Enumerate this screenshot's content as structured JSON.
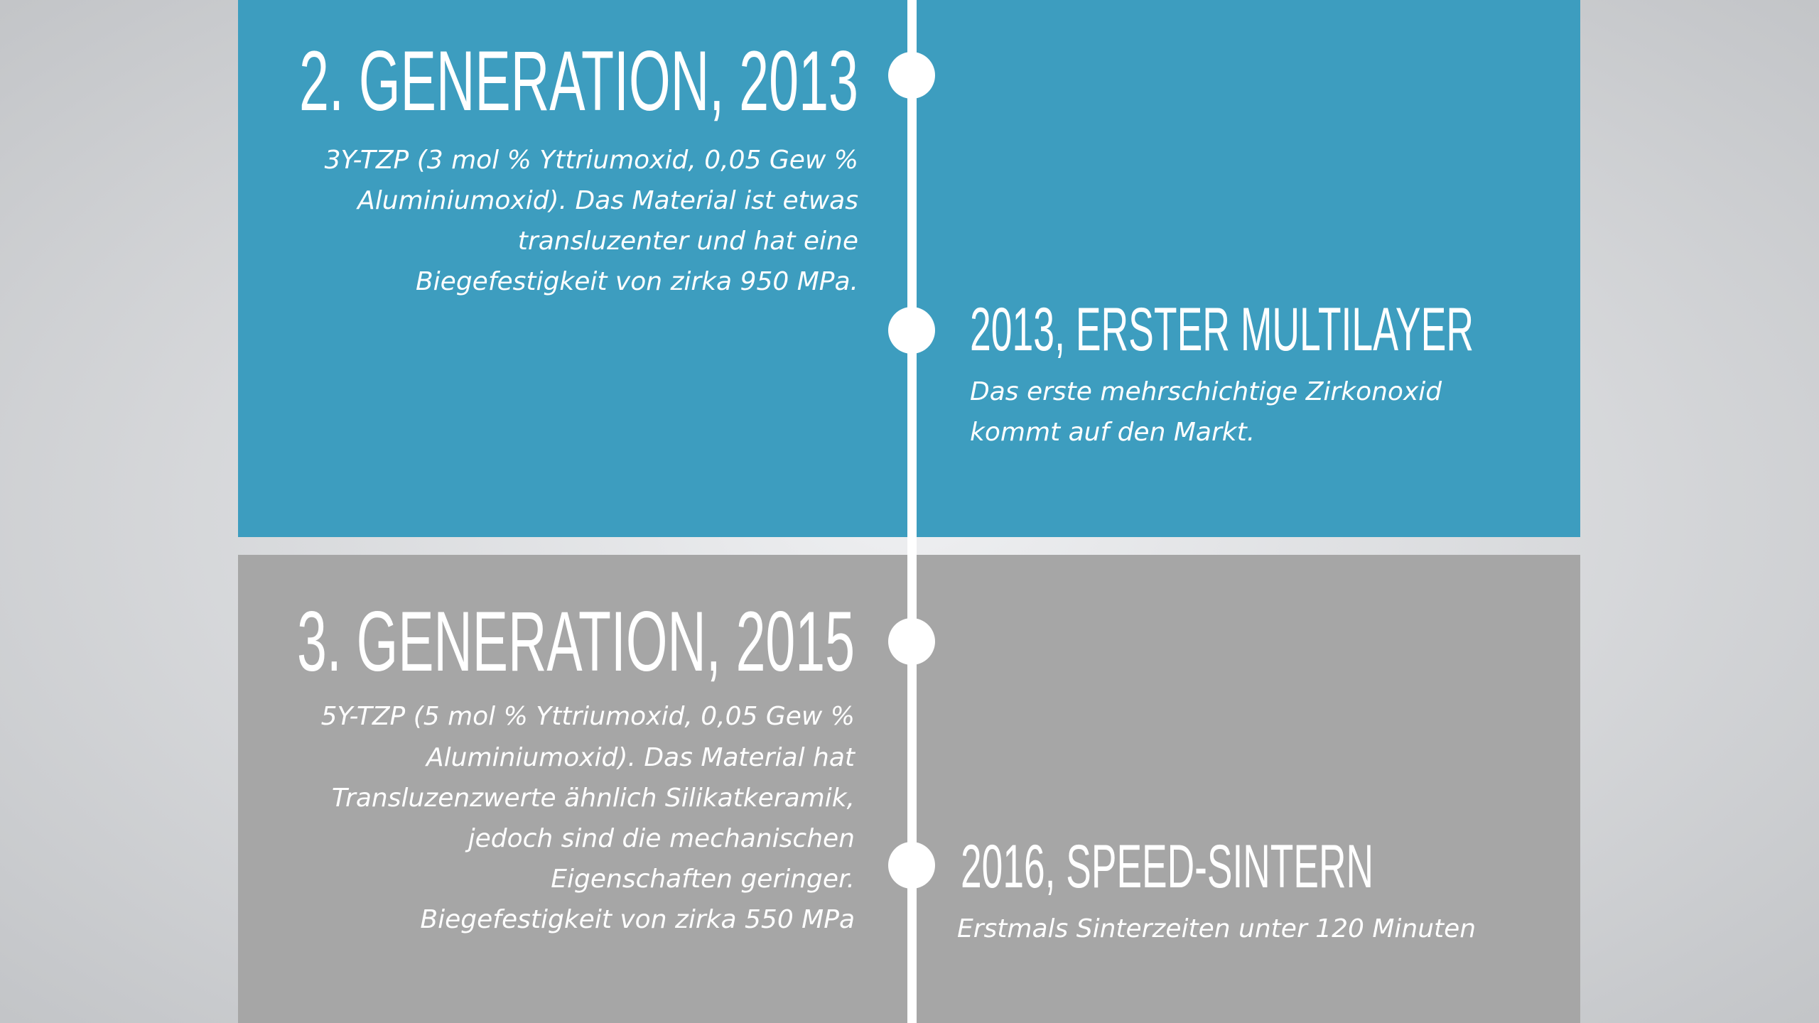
{
  "entries": [
    {
      "title": "2. GENERATION, 2013",
      "lines": [
        "3Y-TZP (3 mol % Yttriumoxid, 0,05 Gew %",
        "Aluminiumoxid). Das Material ist etwas",
        "transluzenter und hat eine",
        "Biegefestigkeit von zirka 950 MPa."
      ]
    },
    {
      "title": "2013, ERSTER MULTILAYER",
      "lines": [
        "Das erste mehrschichtige Zirkonoxid",
        "kommt auf den Markt."
      ]
    },
    {
      "title": "3. GENERATION, 2015",
      "lines": [
        "5Y-TZP (5 mol % Yttriumoxid, 0,05 Gew %",
        "Aluminiumoxid). Das Material hat",
        "Transluzenzwerte ähnlich Silikatkeramik,",
        "jedoch sind die mechanischen",
        "Eigenschaften geringer.",
        "Biegefestigkeit von zirka 550 MPa"
      ]
    },
    {
      "title": "2016, SPEED-SINTERN",
      "lines": [
        "Erstmals Sinterzeiten unter 120 Minuten"
      ]
    }
  ]
}
